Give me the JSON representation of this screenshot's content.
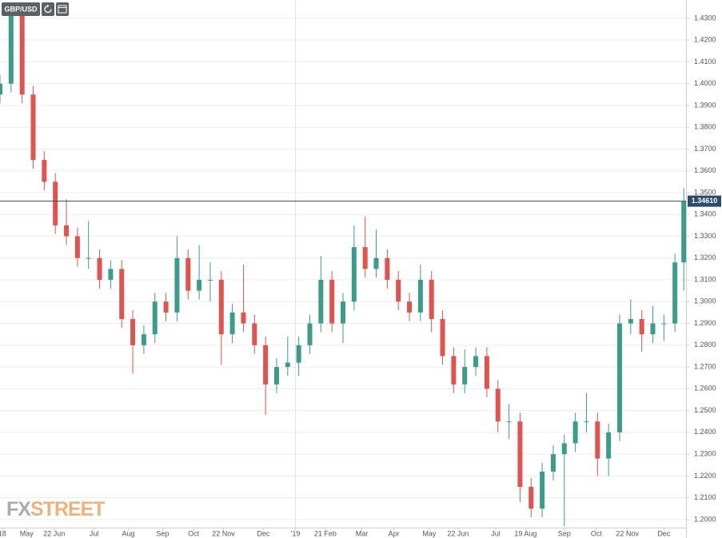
{
  "chart_data": {
    "type": "candlestick",
    "title": "GBP/USD",
    "watermark": {
      "fx": "FX",
      "street": "STREET"
    },
    "xlim": [
      0,
      620
    ],
    "ylim": [
      1.1963,
      1.4384
    ],
    "xticks": [
      {
        "value": 2,
        "label": "18"
      },
      {
        "value": 24,
        "label": "May"
      },
      {
        "value": 49,
        "label": "22 Jun"
      },
      {
        "value": 85,
        "label": "Jul"
      },
      {
        "value": 116,
        "label": "Aug"
      },
      {
        "value": 147,
        "label": "Sep"
      },
      {
        "value": 175,
        "label": "Oct"
      },
      {
        "value": 202,
        "label": "22 Nov"
      },
      {
        "value": 238,
        "label": "Dec"
      },
      {
        "value": 267,
        "label": "'19"
      },
      {
        "value": 294,
        "label": "21 Feb"
      },
      {
        "value": 327,
        "label": "Mar"
      },
      {
        "value": 356,
        "label": "Apr"
      },
      {
        "value": 388,
        "label": "May"
      },
      {
        "value": 414,
        "label": "22 Jun"
      },
      {
        "value": 448,
        "label": "Jul"
      },
      {
        "value": 475,
        "label": "19 Aug"
      },
      {
        "value": 510,
        "label": "Sep"
      },
      {
        "value": 539,
        "label": "Oct"
      },
      {
        "value": 567,
        "label": "22 Nov"
      },
      {
        "value": 600,
        "label": "Dec"
      }
    ],
    "yticks": [
      {
        "value": 1.2,
        "label": "1.2000"
      },
      {
        "value": 1.21,
        "label": "1.2100"
      },
      {
        "value": 1.22,
        "label": "1.2200"
      },
      {
        "value": 1.23,
        "label": "1.2300"
      },
      {
        "value": 1.24,
        "label": "1.2400"
      },
      {
        "value": 1.25,
        "label": "1.2500"
      },
      {
        "value": 1.26,
        "label": "1.2600"
      },
      {
        "value": 1.27,
        "label": "1.2700"
      },
      {
        "value": 1.28,
        "label": "1.2800"
      },
      {
        "value": 1.29,
        "label": "1.2900"
      },
      {
        "value": 1.3,
        "label": "1.3000"
      },
      {
        "value": 1.31,
        "label": "1.3100"
      },
      {
        "value": 1.32,
        "label": "1.3200"
      },
      {
        "value": 1.33,
        "label": "1.3300"
      },
      {
        "value": 1.34,
        "label": "1.3400"
      },
      {
        "value": 1.35,
        "label": "1.3500"
      },
      {
        "value": 1.36,
        "label": "1.3600"
      },
      {
        "value": 1.37,
        "label": "1.3700"
      },
      {
        "value": 1.38,
        "label": "1.3800"
      },
      {
        "value": 1.39,
        "label": "1.3900"
      },
      {
        "value": 1.4,
        "label": "1.4000"
      },
      {
        "value": 1.41,
        "label": "1.4100"
      },
      {
        "value": 1.42,
        "label": "1.4200"
      },
      {
        "value": 1.43,
        "label": "1.4300"
      }
    ],
    "grid": true,
    "up_color": "#3b9c8c",
    "down_color": "#e0534f",
    "last_price": {
      "value": 1.3461,
      "label": "1.34610",
      "color": "#2b4c6f"
    },
    "x": [
      0,
      10,
      20,
      30,
      40,
      50,
      60,
      70,
      80,
      90,
      100,
      110,
      120,
      130,
      140,
      150,
      160,
      170,
      180,
      190,
      200,
      210,
      220,
      230,
      240,
      250,
      260,
      270,
      280,
      290,
      300,
      310,
      320,
      330,
      340,
      350,
      360,
      370,
      380,
      390,
      400,
      410,
      420,
      430,
      440,
      450,
      460,
      470,
      480,
      490,
      500,
      510,
      520,
      530,
      540,
      550,
      560,
      570,
      580,
      590,
      600,
      610,
      618
    ],
    "open": [
      1.395,
      1.4,
      1.432,
      1.395,
      1.365,
      1.355,
      1.335,
      1.33,
      1.32,
      1.32,
      1.31,
      1.315,
      1.292,
      1.28,
      1.285,
      1.3,
      1.295,
      1.32,
      1.305,
      1.31,
      1.31,
      1.285,
      1.295,
      1.29,
      1.28,
      1.262,
      1.27,
      1.272,
      1.28,
      1.29,
      1.31,
      1.29,
      1.3,
      1.325,
      1.315,
      1.32,
      1.31,
      1.3,
      1.295,
      1.31,
      1.292,
      1.275,
      1.262,
      1.27,
      1.275,
      1.26,
      1.245,
      1.245,
      1.215,
      1.205,
      1.222,
      1.23,
      1.235,
      1.245,
      1.245,
      1.228,
      1.24,
      1.29,
      1.292,
      1.285,
      1.29,
      1.29,
      1.318
    ],
    "high": [
      1.404,
      1.436,
      1.434,
      1.399,
      1.369,
      1.359,
      1.347,
      1.334,
      1.337,
      1.324,
      1.319,
      1.319,
      1.296,
      1.289,
      1.304,
      1.304,
      1.33,
      1.324,
      1.326,
      1.318,
      1.314,
      1.299,
      1.317,
      1.294,
      1.284,
      1.274,
      1.284,
      1.284,
      1.294,
      1.321,
      1.314,
      1.304,
      1.335,
      1.339,
      1.333,
      1.324,
      1.314,
      1.304,
      1.317,
      1.314,
      1.296,
      1.279,
      1.278,
      1.279,
      1.279,
      1.264,
      1.253,
      1.249,
      1.219,
      1.226,
      1.234,
      1.239,
      1.249,
      1.258,
      1.249,
      1.244,
      1.294,
      1.301,
      1.296,
      1.298,
      1.294,
      1.322,
      1.352
    ],
    "low": [
      1.391,
      1.396,
      1.391,
      1.361,
      1.351,
      1.331,
      1.326,
      1.316,
      1.315,
      1.306,
      1.306,
      1.288,
      1.267,
      1.276,
      1.281,
      1.291,
      1.291,
      1.301,
      1.301,
      1.3,
      1.271,
      1.281,
      1.286,
      1.276,
      1.248,
      1.258,
      1.266,
      1.266,
      1.276,
      1.286,
      1.286,
      1.281,
      1.296,
      1.311,
      1.311,
      1.306,
      1.296,
      1.291,
      1.291,
      1.286,
      1.271,
      1.258,
      1.258,
      1.266,
      1.256,
      1.24,
      1.237,
      1.208,
      1.201,
      1.201,
      1.218,
      1.197,
      1.231,
      1.24,
      1.22,
      1.22,
      1.236,
      1.285,
      1.277,
      1.281,
      1.282,
      1.286,
      1.305
    ],
    "close": [
      1.4,
      1.432,
      1.395,
      1.365,
      1.355,
      1.335,
      1.33,
      1.32,
      1.32,
      1.31,
      1.315,
      1.292,
      1.28,
      1.285,
      1.3,
      1.295,
      1.32,
      1.305,
      1.31,
      1.31,
      1.285,
      1.295,
      1.29,
      1.28,
      1.262,
      1.27,
      1.272,
      1.28,
      1.29,
      1.31,
      1.29,
      1.3,
      1.325,
      1.315,
      1.32,
      1.31,
      1.3,
      1.295,
      1.31,
      1.292,
      1.275,
      1.262,
      1.27,
      1.275,
      1.26,
      1.245,
      1.245,
      1.215,
      1.205,
      1.222,
      1.23,
      1.235,
      1.245,
      1.245,
      1.228,
      1.24,
      1.29,
      1.292,
      1.285,
      1.29,
      1.29,
      1.318,
      1.3461
    ]
  }
}
